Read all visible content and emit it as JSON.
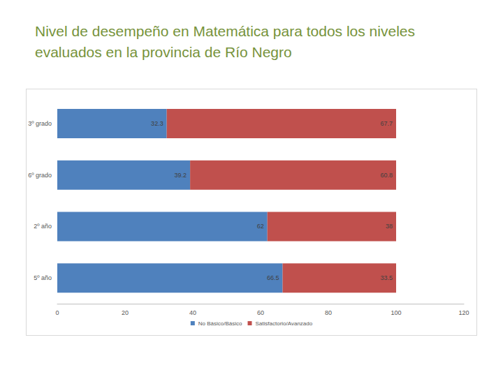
{
  "chart_data": {
    "type": "bar",
    "title": "Nivel de desempeño en Matemática para todos los niveles evaluados en la provincia de Río Negro",
    "orientation": "horizontal",
    "stacked": true,
    "data_labels": true,
    "grid": false,
    "legend": "bottom",
    "categories": [
      "3º grado",
      "6º grado",
      "2º año",
      "5º año"
    ],
    "series": [
      {
        "name": "No Básico/Básico",
        "color": "#4f81bd",
        "values": [
          32.3,
          39.2,
          62,
          66.5
        ]
      },
      {
        "name": "Satisfactorio/Avanzado",
        "color": "#c0504d",
        "values": [
          67.7,
          60.8,
          38,
          33.5
        ]
      }
    ],
    "xlim": [
      0,
      120
    ],
    "xticks": [
      0,
      20,
      40,
      60,
      80,
      100,
      120
    ]
  }
}
